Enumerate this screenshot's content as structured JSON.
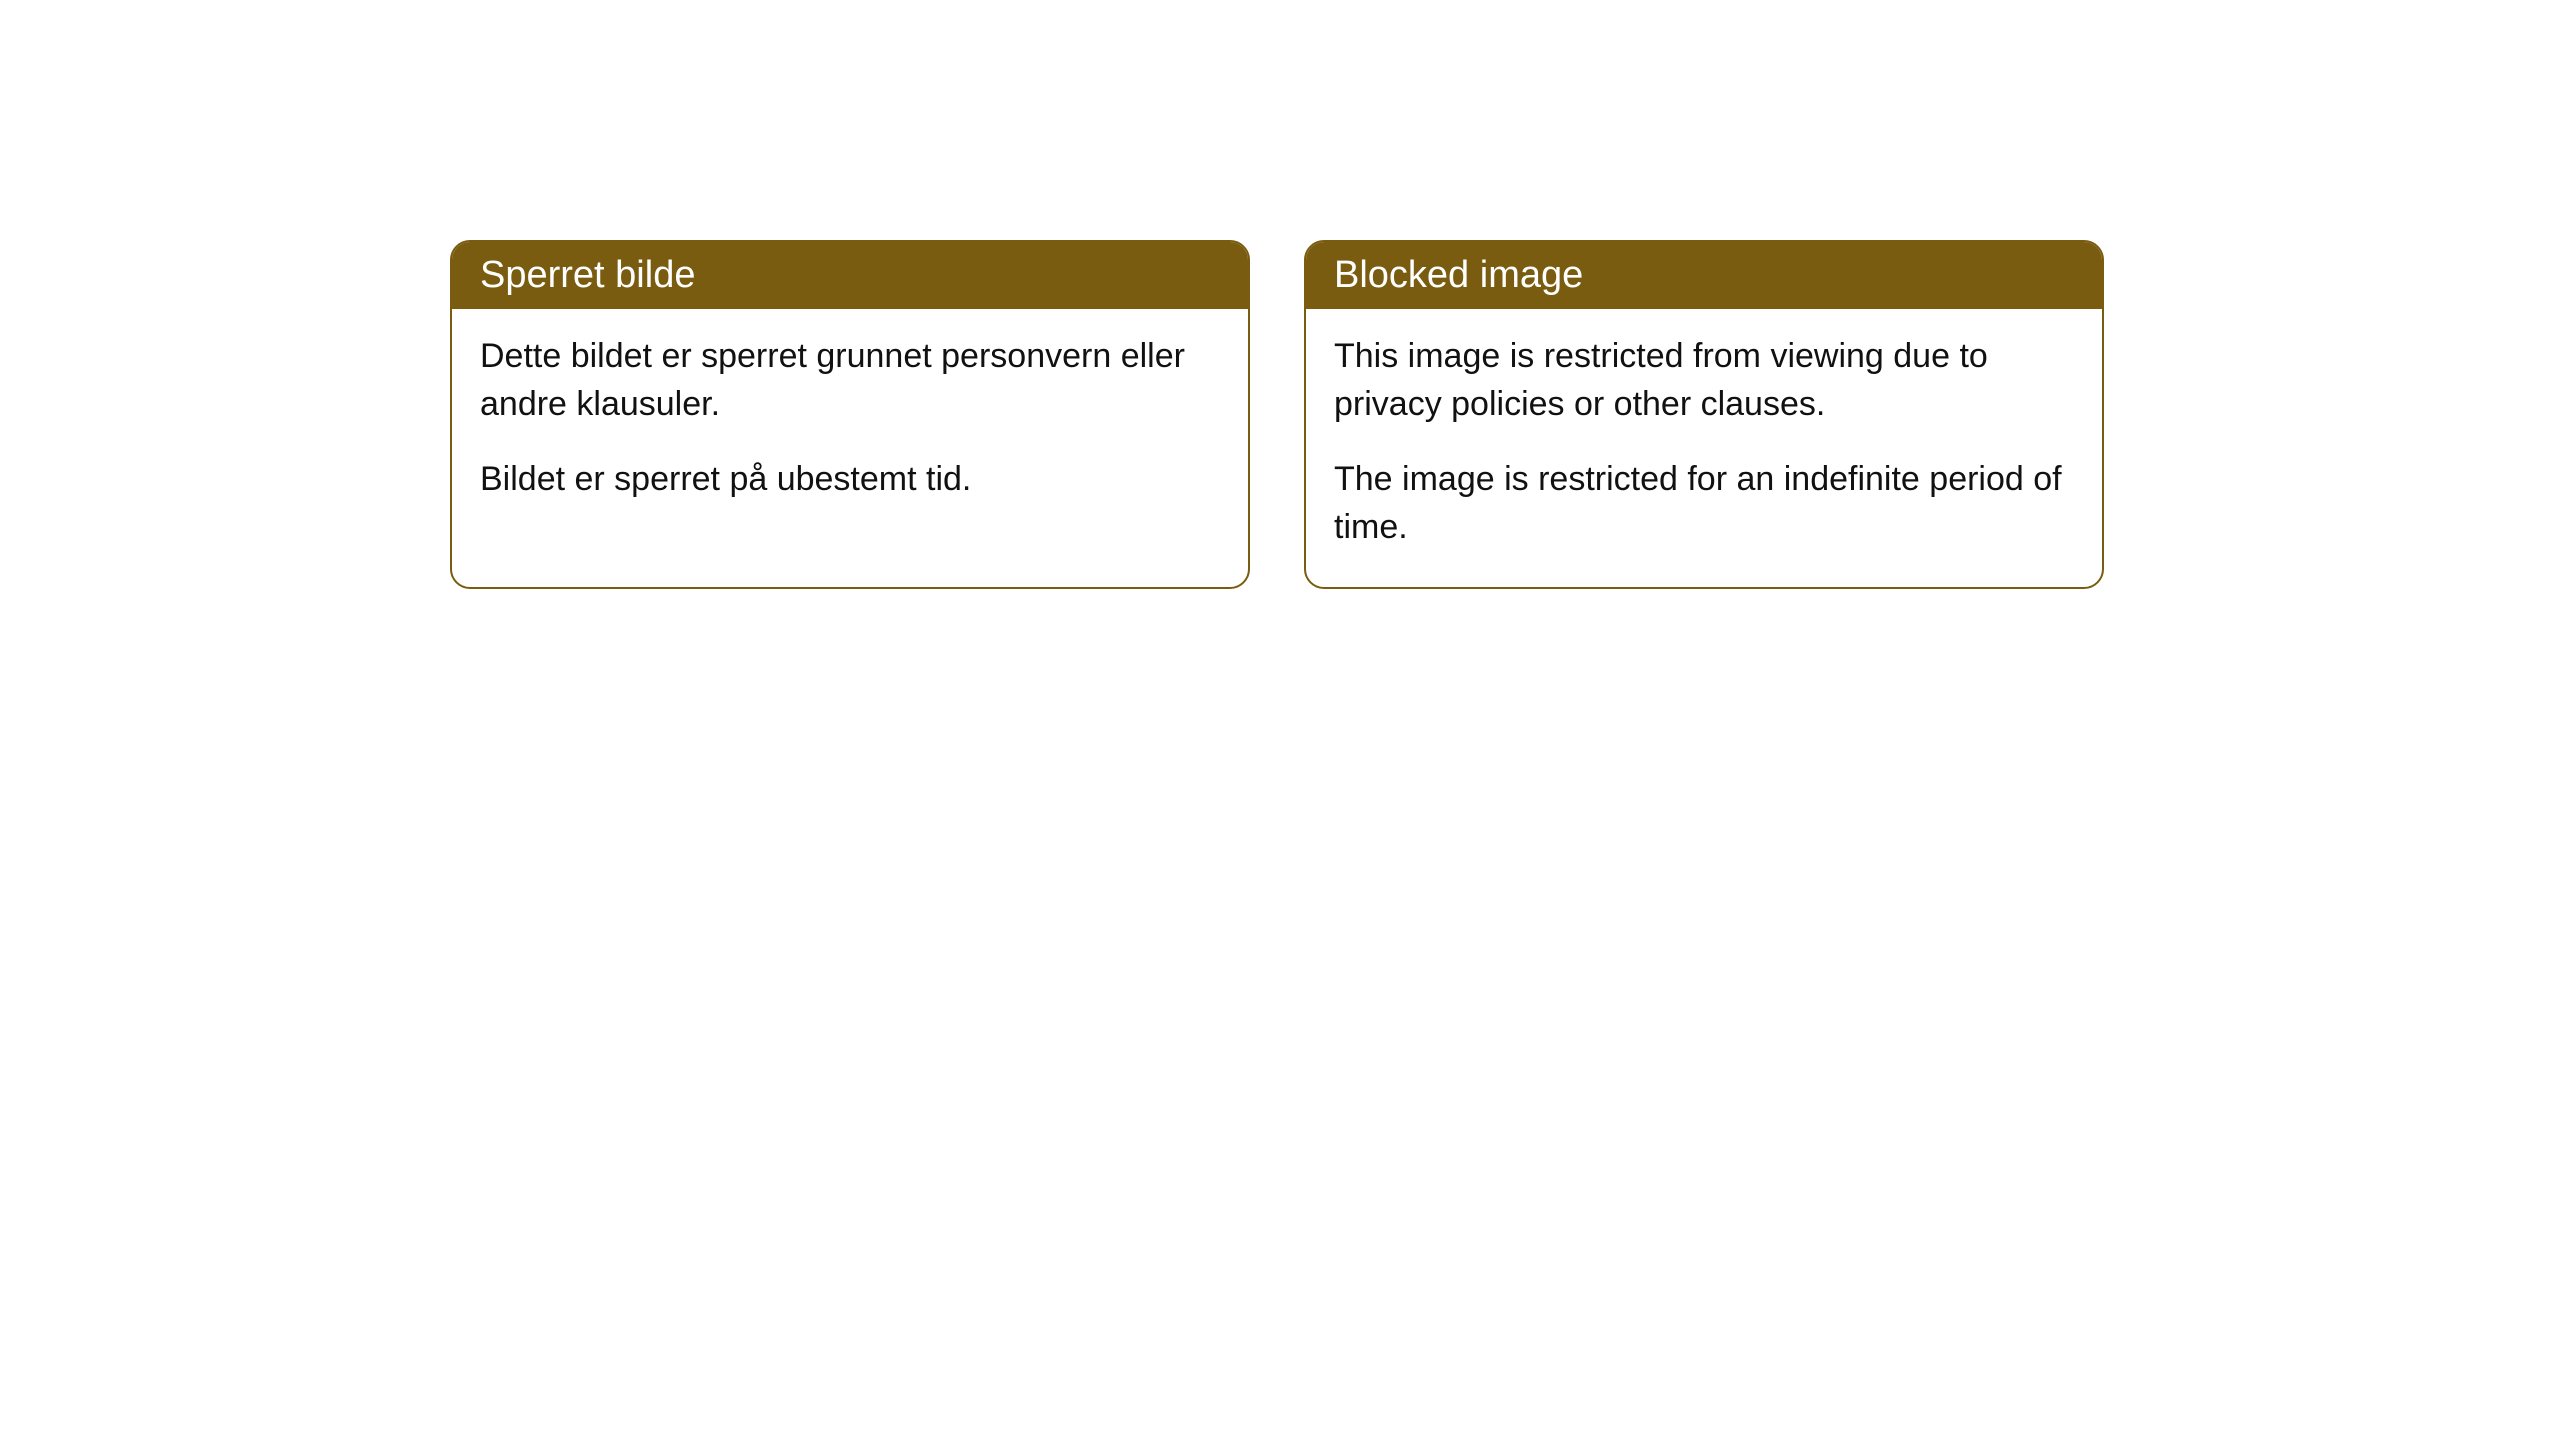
{
  "cards": [
    {
      "title": "Sperret bilde",
      "paragraph1": "Dette bildet er sperret grunnet personvern eller andre klausuler.",
      "paragraph2": "Bildet er sperret på ubestemt tid."
    },
    {
      "title": "Blocked image",
      "paragraph1": "This image is restricted from viewing due to privacy policies or other clauses.",
      "paragraph2": "The image is restricted for an indefinite period of time."
    }
  ],
  "styling": {
    "header_bg_color": "#7a5c10",
    "header_text_color": "#ffffff",
    "card_border_color": "#7a5c10",
    "card_bg_color": "#ffffff",
    "body_text_color": "#111111",
    "page_bg_color": "#ffffff",
    "border_radius": 20,
    "header_fontsize": 38,
    "body_fontsize": 34
  }
}
